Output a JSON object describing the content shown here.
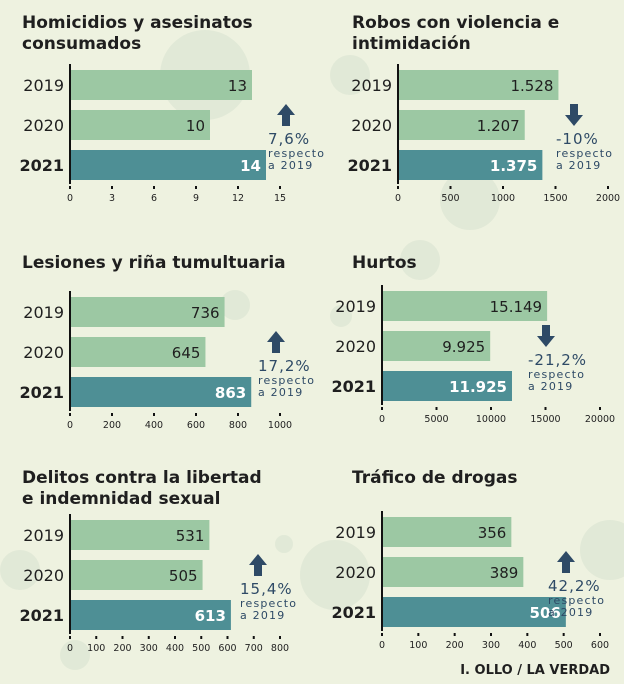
{
  "colors": {
    "background": "#eef2e0",
    "bar_light": "#9cc8a3",
    "bar_dark": "#4e8f95",
    "annotation": "#2e4a66",
    "text": "#1f1f1f"
  },
  "credit": "I. OLLO / LA VERDAD",
  "chart_data": [
    {
      "type": "bar",
      "orientation": "horizontal",
      "title": "Homicidios y asesinatos\nconsumados",
      "categories": [
        "2019",
        "2020",
        "2021"
      ],
      "values": [
        13,
        10,
        14
      ],
      "value_labels": [
        "13",
        "10",
        "14"
      ],
      "xlim": [
        0,
        15
      ],
      "xticks": [
        0,
        3,
        6,
        9,
        12,
        15
      ],
      "xtick_labels": [
        "0",
        "3",
        "6",
        "9",
        "12",
        "15"
      ],
      "annotation": {
        "direction": "up",
        "pct": "7,6%",
        "line1": "respecto",
        "line2": "a 2019"
      }
    },
    {
      "type": "bar",
      "orientation": "horizontal",
      "title": "Robos con violencia e\nintimidación",
      "categories": [
        "2019",
        "2020",
        "2021"
      ],
      "values": [
        1528,
        1207,
        1375
      ],
      "value_labels": [
        "1.528",
        "1.207",
        "1.375"
      ],
      "xlim": [
        0,
        2000
      ],
      "xticks": [
        0,
        500,
        1000,
        1500,
        2000
      ],
      "xtick_labels": [
        "0",
        "500",
        "1000",
        "1500",
        "2000"
      ],
      "annotation": {
        "direction": "down",
        "pct": "-10%",
        "line1": "respecto",
        "line2": "a 2019"
      }
    },
    {
      "type": "bar",
      "orientation": "horizontal",
      "title": "Lesiones y riña tumultuaria",
      "categories": [
        "2019",
        "2020",
        "2021"
      ],
      "values": [
        736,
        645,
        863
      ],
      "value_labels": [
        "736",
        "645",
        "863"
      ],
      "xlim": [
        0,
        1000
      ],
      "xticks": [
        0,
        200,
        400,
        600,
        800,
        1000
      ],
      "xtick_labels": [
        "0",
        "200",
        "400",
        "600",
        "800",
        "1000"
      ],
      "annotation": {
        "direction": "up",
        "pct": "17,2%",
        "line1": "respecto",
        "line2": "a 2019"
      }
    },
    {
      "type": "bar",
      "orientation": "horizontal",
      "title": "Hurtos",
      "categories": [
        "2019",
        "2020",
        "2021"
      ],
      "values": [
        15149,
        9925,
        11925
      ],
      "value_labels": [
        "15.149",
        "9.925",
        "11.925"
      ],
      "xlim": [
        0,
        20000
      ],
      "xticks": [
        0,
        5000,
        10000,
        15000,
        20000
      ],
      "xtick_labels": [
        "0",
        "5000",
        "10000",
        "15000",
        "20000"
      ],
      "annotation": {
        "direction": "down",
        "pct": "-21,2%",
        "line1": "respecto",
        "line2": "a 2019"
      }
    },
    {
      "type": "bar",
      "orientation": "horizontal",
      "title": "Delitos contra la libertad\ne indemnidad sexual",
      "categories": [
        "2019",
        "2020",
        "2021"
      ],
      "values": [
        531,
        505,
        613
      ],
      "value_labels": [
        "531",
        "505",
        "613"
      ],
      "xlim": [
        0,
        800
      ],
      "xticks": [
        0,
        100,
        200,
        300,
        400,
        500,
        600,
        700,
        800
      ],
      "xtick_labels": [
        "0",
        "100",
        "200",
        "300",
        "400",
        "500",
        "600",
        "700",
        "800"
      ],
      "annotation": {
        "direction": "up",
        "pct": "15,4%",
        "line1": "respecto",
        "line2": "a 2019"
      }
    },
    {
      "type": "bar",
      "orientation": "horizontal",
      "title": "Tráfico de drogas",
      "categories": [
        "2019",
        "2020",
        "2021"
      ],
      "values": [
        356,
        389,
        506
      ],
      "value_labels": [
        "356",
        "389",
        "506"
      ],
      "xlim": [
        0,
        600
      ],
      "xticks": [
        0,
        100,
        200,
        300,
        400,
        500,
        600
      ],
      "xtick_labels": [
        "0",
        "100",
        "200",
        "300",
        "400",
        "500",
        "600"
      ],
      "annotation": {
        "direction": "up",
        "pct": "42,2%",
        "line1": "respecto",
        "line2": "a 2019"
      }
    }
  ]
}
